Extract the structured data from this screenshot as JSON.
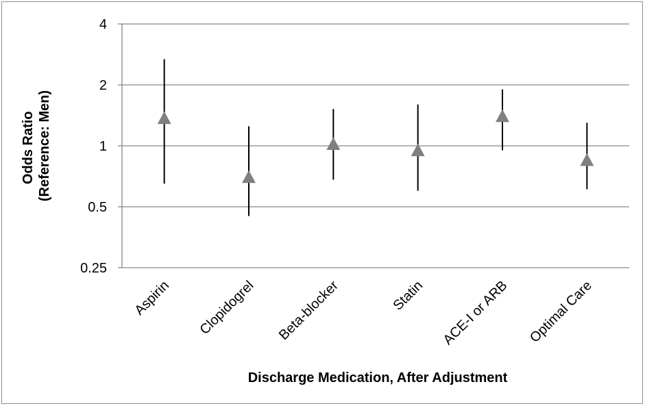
{
  "chart_data": {
    "type": "scatter",
    "title": "",
    "xlabel": "Discharge Medication, After Adjustment",
    "ylabel_lines": [
      "Odds Ratio",
      "(Reference: Men)"
    ],
    "y_scale": "log2",
    "ylim": [
      0.25,
      4
    ],
    "yticks": [
      {
        "value": 4,
        "label": "4"
      },
      {
        "value": 2,
        "label": "2"
      },
      {
        "value": 1,
        "label": "1"
      },
      {
        "value": 0.5,
        "label": "0.5"
      },
      {
        "value": 0.25,
        "label": "0.25"
      }
    ],
    "grid": true,
    "legend": "none",
    "marker": "triangle",
    "marker_color": "#808080",
    "errorbar_color": "#000000",
    "categories": [
      "Aspirin",
      "Clopidogrel",
      "Beta-blocker",
      "Statin",
      "ACE-I or ARB",
      "Optimal Care"
    ],
    "points": [
      {
        "category": "Aspirin",
        "or": 1.37,
        "ci_low": 0.65,
        "ci_high": 2.68
      },
      {
        "category": "Clopidogrel",
        "or": 0.7,
        "ci_low": 0.45,
        "ci_high": 1.25
      },
      {
        "category": "Beta-blocker",
        "or": 1.02,
        "ci_low": 0.68,
        "ci_high": 1.52
      },
      {
        "category": "Statin",
        "or": 0.95,
        "ci_low": 0.6,
        "ci_high": 1.6
      },
      {
        "category": "ACE-I or ARB",
        "or": 1.4,
        "ci_low": 0.95,
        "ci_high": 1.9
      },
      {
        "category": "Optimal Care",
        "or": 0.85,
        "ci_low": 0.61,
        "ci_high": 1.3
      }
    ]
  }
}
